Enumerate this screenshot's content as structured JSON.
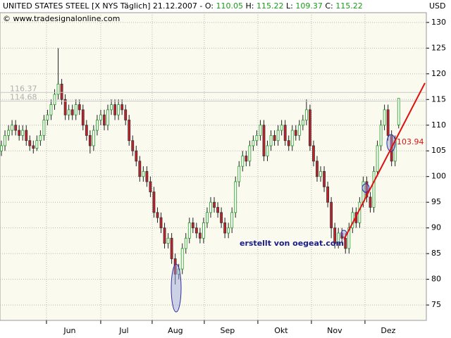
{
  "chart_data": {
    "type": "candlestick",
    "title": "UNITED STATES STEEL [X NYS  Täglich] 21.12.2007 -",
    "ohlc_labels": [
      "O:",
      "H:",
      "L:",
      "C:"
    ],
    "subtitle": "© www.tradesignalonline.com",
    "y_axis_label": "USD",
    "annotation": "erstellt von oegeat.com",
    "open": [
      105,
      106,
      108,
      109,
      110,
      109,
      108,
      109,
      107,
      106,
      105.5,
      107,
      108,
      111,
      112,
      114,
      116,
      118,
      115,
      112,
      113,
      112,
      114,
      113,
      110,
      108,
      106,
      109,
      111,
      112,
      110,
      113,
      114,
      112,
      114,
      113,
      111,
      107,
      105,
      103,
      100,
      101,
      99,
      97,
      93,
      92,
      90,
      87,
      88,
      84,
      81,
      82,
      86,
      88,
      91,
      90,
      89,
      88,
      91,
      93,
      95,
      94,
      93,
      91,
      89,
      90,
      93,
      99,
      102,
      104,
      103,
      106,
      107,
      108,
      110,
      104,
      106,
      108,
      107,
      109,
      110,
      107,
      106,
      109,
      108,
      110,
      111,
      113,
      106,
      103,
      100,
      101,
      98,
      95,
      90,
      87,
      89,
      88,
      86,
      90,
      93,
      91,
      95,
      99,
      96,
      94,
      101,
      106,
      110,
      113,
      108,
      103,
      110.05
    ],
    "high": [
      107,
      109,
      110,
      111,
      111,
      110,
      110,
      110,
      108,
      107,
      108,
      109,
      112,
      113,
      115,
      117,
      125,
      119,
      116,
      114,
      114,
      115,
      115,
      114,
      111,
      109,
      110,
      112,
      113,
      113,
      114,
      115,
      115,
      115,
      115,
      114,
      112,
      108,
      106,
      104,
      102,
      102,
      100,
      98,
      94,
      93,
      91,
      89,
      89,
      85,
      83,
      87,
      89,
      92,
      92,
      91,
      90,
      92,
      94,
      96,
      96,
      95,
      94,
      92,
      91,
      94,
      100,
      103,
      105,
      105,
      107,
      108,
      109,
      111,
      111,
      107,
      109,
      109,
      110,
      111,
      111,
      108,
      110,
      110,
      111,
      112,
      115,
      114,
      107,
      104,
      102,
      102,
      99,
      96,
      91,
      90,
      90,
      89,
      91,
      94,
      94,
      96,
      100,
      100,
      97,
      102,
      107,
      111,
      114,
      114,
      109,
      108,
      115.22
    ],
    "low": [
      104,
      105,
      107,
      108,
      108,
      107,
      107,
      106,
      105,
      104.5,
      105,
      106,
      107,
      110,
      111,
      113,
      115,
      114,
      111,
      111,
      111,
      111,
      112,
      109,
      107,
      104.5,
      105,
      108,
      110,
      109,
      109,
      112,
      111,
      111,
      112,
      110,
      106,
      104,
      102,
      99,
      99,
      98,
      96,
      92,
      91,
      89,
      86,
      86,
      83,
      79,
      80,
      81,
      85,
      87,
      89,
      88,
      87,
      87,
      90,
      92,
      93,
      92,
      90,
      88,
      88,
      89,
      92,
      98,
      101,
      102,
      102,
      105,
      106,
      107,
      103,
      103,
      105,
      106,
      106,
      108,
      106,
      105,
      105,
      107,
      107,
      109,
      110,
      105,
      102,
      99,
      99,
      97,
      94,
      88,
      86,
      86,
      87,
      85,
      85,
      89,
      90,
      90,
      94,
      95,
      93,
      93,
      100,
      105,
      109,
      107,
      102,
      102,
      109.37
    ],
    "close": [
      106,
      108,
      109,
      110,
      109,
      108,
      109,
      107,
      106,
      105.5,
      107,
      108,
      111,
      112,
      114,
      116,
      118,
      115,
      112,
      113,
      112,
      114,
      113,
      110,
      108,
      106,
      109,
      111,
      112,
      110,
      113,
      114,
      112,
      114,
      113,
      111,
      107,
      105,
      103,
      100,
      101,
      99,
      97,
      93,
      92,
      90,
      87,
      88,
      84,
      81,
      82,
      86,
      88,
      91,
      90,
      89,
      88,
      91,
      93,
      95,
      94,
      93,
      91,
      89,
      90,
      93,
      99,
      102,
      104,
      103,
      106,
      107,
      108,
      110,
      104,
      106,
      108,
      107,
      109,
      110,
      107,
      106,
      109,
      108,
      110,
      111,
      113,
      106,
      103,
      100,
      101,
      98,
      95,
      90,
      87,
      89,
      88,
      86,
      90,
      93,
      91,
      95,
      99,
      96,
      94,
      101,
      106,
      110,
      113,
      108,
      103,
      107,
      115.22
    ],
    "up_color": "#1f9e1f",
    "down_color": "#c8202a",
    "xlim": [
      -0.4,
      119.8
    ],
    "xticks": [
      {
        "value": 12.7,
        "label": "Jun"
      },
      {
        "value": 28.0,
        "label": "Jul"
      },
      {
        "value": 42.5,
        "label": "Aug"
      },
      {
        "value": 57.2,
        "label": "Sep"
      },
      {
        "value": 72.3,
        "label": "Okt"
      },
      {
        "value": 87.4,
        "label": "Nov"
      },
      {
        "value": 102.5,
        "label": "Dez"
      }
    ],
    "ylim": [
      72,
      131.9
    ],
    "yticks": [
      75,
      80,
      85,
      90,
      95,
      100,
      105,
      110,
      115,
      120,
      125,
      130
    ],
    "grid": true,
    "hlines": [
      116.37,
      114.68
    ],
    "trendline": {
      "x": [
        96.6,
        119.4
      ],
      "y": [
        87.75,
        118.2
      ],
      "color": "#e01010",
      "label": 103.94
    }
  }
}
